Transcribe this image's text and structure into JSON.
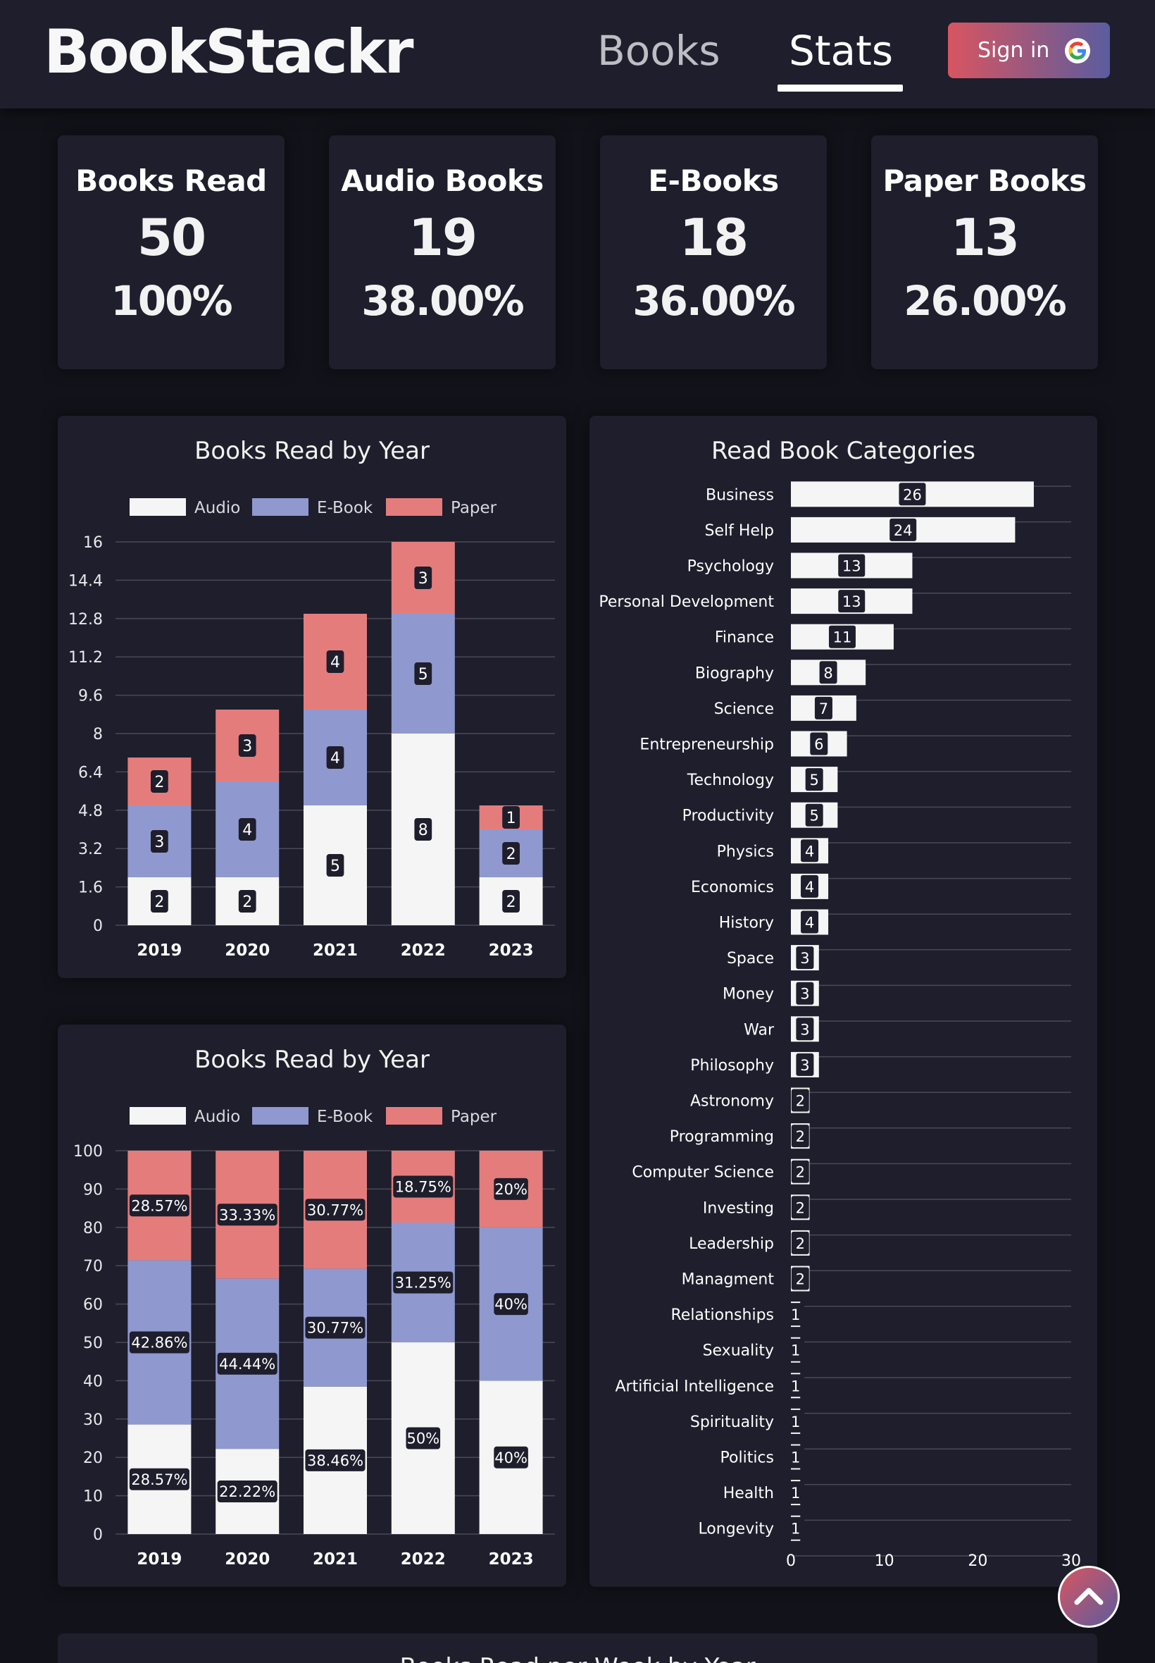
{
  "app": {
    "brand": "BookStackr",
    "nav": [
      {
        "label": "Books",
        "active": false
      },
      {
        "label": "Stats",
        "active": true
      }
    ],
    "signin_label": "Sign in",
    "signin_icon": "google-icon"
  },
  "stats": [
    {
      "label": "Books Read",
      "value": "50",
      "percent": "100%"
    },
    {
      "label": "Audio Books",
      "value": "19",
      "percent": "38.00%"
    },
    {
      "label": "E-Books",
      "value": "18",
      "percent": "36.00%"
    },
    {
      "label": "Paper Books",
      "value": "13",
      "percent": "26.00%"
    }
  ],
  "colors": {
    "audio": "#f5f5f5",
    "ebook": "#8f99cf",
    "paper": "#e57c7c",
    "card": "#1e1e2c",
    "background": "#12121a",
    "accent_start": "#d85560",
    "accent_end": "#5b5c9e"
  },
  "scroll_top_icon": "chevron-up-icon",
  "bottom_section_title": "Books Read per Week by Year",
  "chart_data": [
    {
      "type": "bar",
      "stacked": true,
      "title": "Books Read by Year",
      "legend": [
        "Audio",
        "E-Book",
        "Paper"
      ],
      "legend_position": "top",
      "categories": [
        "2019",
        "2020",
        "2021",
        "2022",
        "2023"
      ],
      "series": [
        {
          "name": "Audio",
          "values": [
            2,
            2,
            5,
            8,
            2
          ]
        },
        {
          "name": "E-Book",
          "values": [
            3,
            4,
            4,
            5,
            2
          ]
        },
        {
          "name": "Paper",
          "values": [
            2,
            3,
            4,
            3,
            1
          ]
        }
      ],
      "ylim": [
        0,
        16
      ],
      "yticks": [
        "0",
        "1.6",
        "3.2",
        "4.8",
        "6.4",
        "8",
        "9.6",
        "11.2",
        "12.8",
        "14.4",
        "16"
      ],
      "grid": true
    },
    {
      "type": "bar",
      "stacked": true,
      "percent": true,
      "title": "Books Read by Year",
      "legend": [
        "Audio",
        "E-Book",
        "Paper"
      ],
      "legend_position": "top",
      "categories": [
        "2019",
        "2020",
        "2021",
        "2022",
        "2023"
      ],
      "series": [
        {
          "name": "Audio",
          "values": [
            28.57,
            22.22,
            38.46,
            50,
            40
          ],
          "labels": [
            "28.57%",
            "22.22%",
            "38.46%",
            "50%",
            "40%"
          ]
        },
        {
          "name": "E-Book",
          "values": [
            42.86,
            44.44,
            30.77,
            31.25,
            40
          ],
          "labels": [
            "42.86%",
            "44.44%",
            "30.77%",
            "31.25%",
            "40%"
          ]
        },
        {
          "name": "Paper",
          "values": [
            28.57,
            33.33,
            30.77,
            18.75,
            20
          ],
          "labels": [
            "28.57%",
            "33.33%",
            "30.77%",
            "18.75%",
            "20%"
          ]
        }
      ],
      "ylim": [
        0,
        100
      ],
      "yticks": [
        "0",
        "10",
        "20",
        "30",
        "40",
        "50",
        "60",
        "70",
        "80",
        "90",
        "100"
      ],
      "grid": true
    },
    {
      "type": "bar",
      "orientation": "horizontal",
      "title": "Read Book Categories",
      "categories": [
        "Business",
        "Self Help",
        "Psychology",
        "Personal Development",
        "Finance",
        "Biography",
        "Science",
        "Entrepreneurship",
        "Technology",
        "Productivity",
        "Physics",
        "Economics",
        "History",
        "Space",
        "Money",
        "War",
        "Philosophy",
        "Astronomy",
        "Programming",
        "Computer Science",
        "Investing",
        "Leadership",
        "Managment",
        "Relationships",
        "Sexuality",
        "Artificial Intelligence",
        "Spirituality",
        "Politics",
        "Health",
        "Longevity"
      ],
      "values": [
        26,
        24,
        13,
        13,
        11,
        8,
        7,
        6,
        5,
        5,
        4,
        4,
        4,
        3,
        3,
        3,
        3,
        2,
        2,
        2,
        2,
        2,
        2,
        1,
        1,
        1,
        1,
        1,
        1,
        1
      ],
      "xlim": [
        0,
        30
      ],
      "xticks": [
        "0",
        "10",
        "20",
        "30"
      ],
      "grid": true
    }
  ]
}
